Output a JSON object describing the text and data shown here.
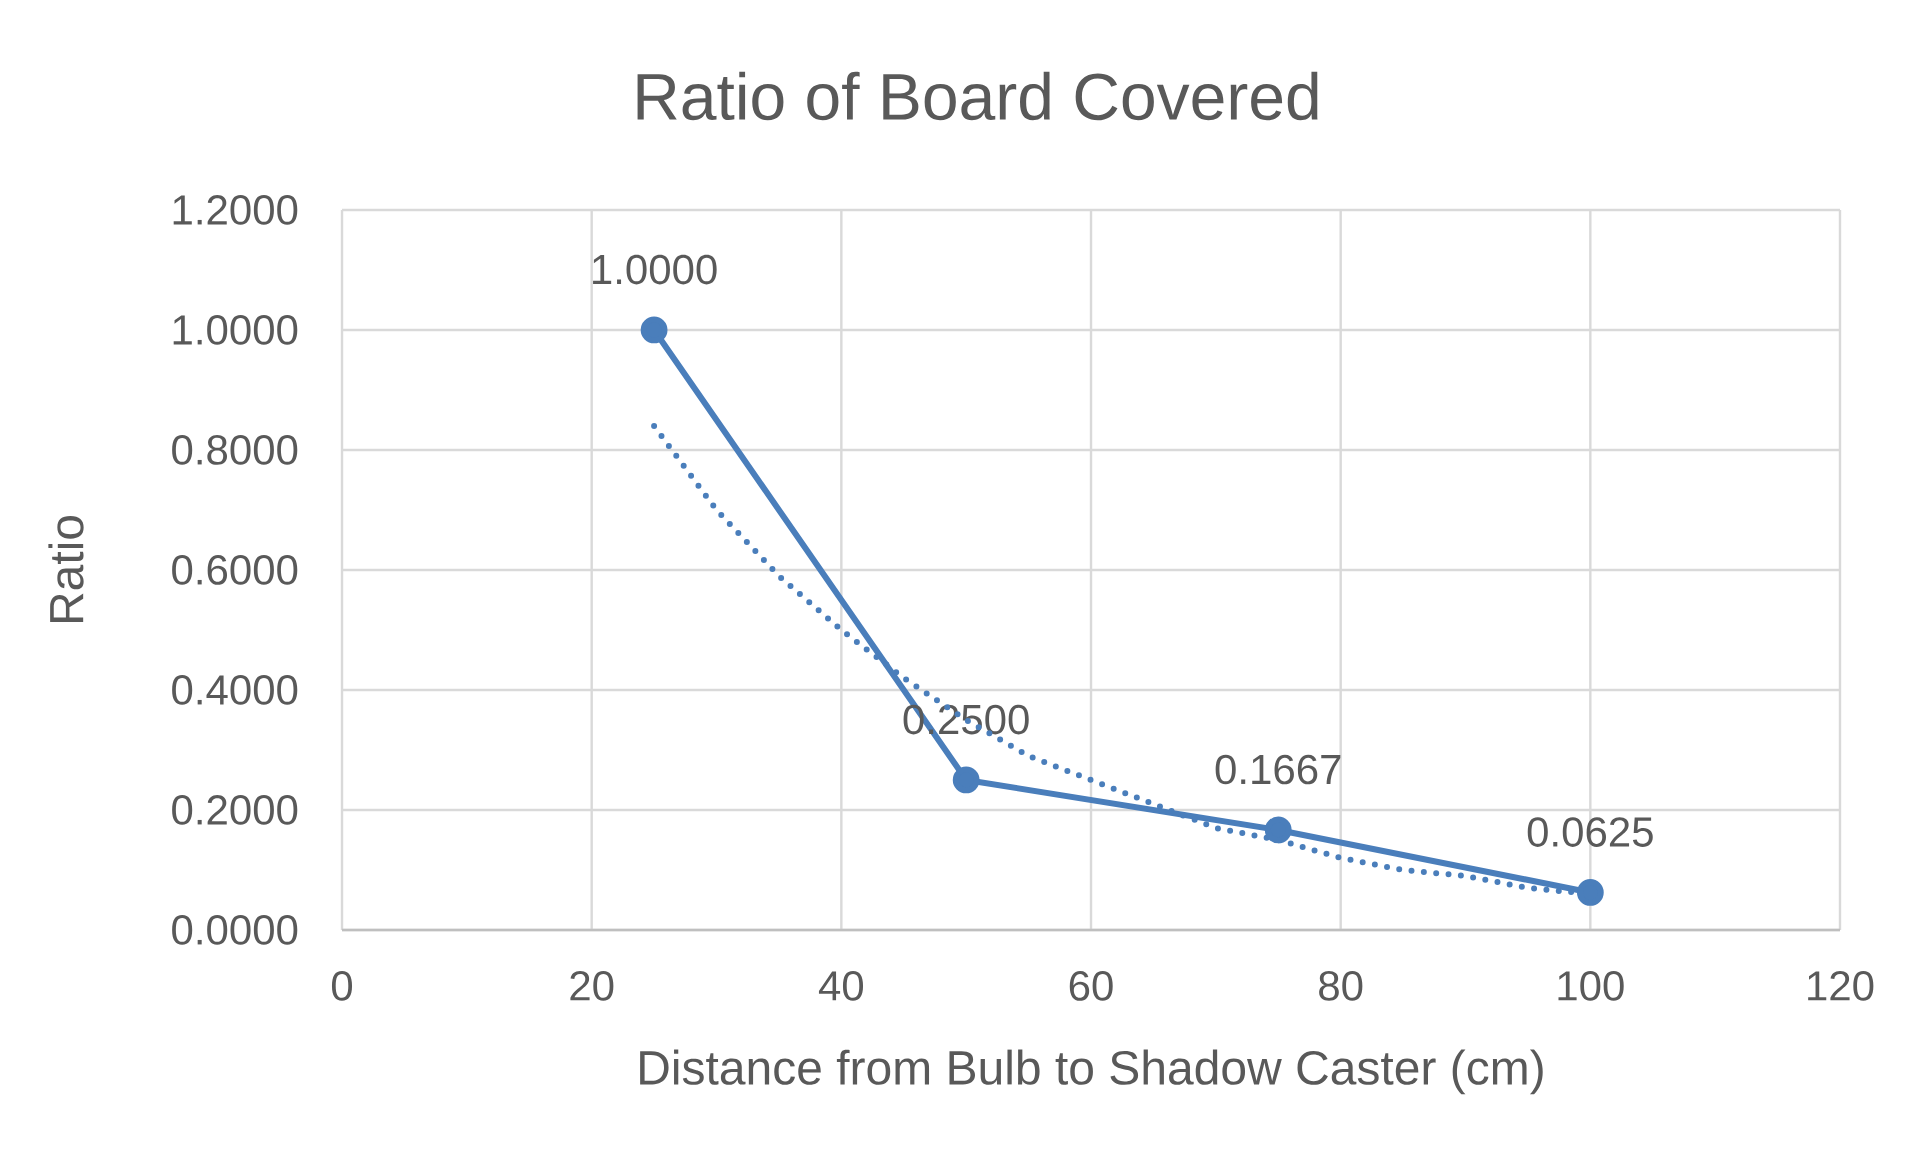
{
  "chart_data": {
    "type": "line",
    "title": "Ratio of Board Covered",
    "xlabel": "Distance from Bulb to Shadow Caster (cm)",
    "ylabel": "Ratio",
    "x": [
      25,
      50,
      75,
      100
    ],
    "xlim": [
      0,
      120
    ],
    "xticks": [
      0,
      20,
      40,
      60,
      80,
      100,
      120
    ],
    "ylim": [
      0,
      1.2
    ],
    "yticks": [
      {
        "value": 0,
        "label": "0.0000"
      },
      {
        "value": 0.2,
        "label": "0.2000"
      },
      {
        "value": 0.4,
        "label": "0.4000"
      },
      {
        "value": 0.6,
        "label": "0.6000"
      },
      {
        "value": 0.8,
        "label": "0.8000"
      },
      {
        "value": 1.0,
        "label": "1.0000"
      },
      {
        "value": 1.2,
        "label": "1.2000"
      }
    ],
    "grid": true,
    "series": [
      {
        "color": "#4a7ebb",
        "values": [
          1.0,
          0.25,
          0.1667,
          0.0625
        ],
        "value_labels": [
          "1.0000",
          "0.2500",
          "0.1667",
          "0.0625"
        ],
        "marker": "circle",
        "line_style": "solid"
      },
      {
        "color": "#4a7ebb",
        "x": [
          25,
          30,
          35,
          40,
          45,
          50,
          55,
          60,
          65,
          70,
          75,
          80,
          85,
          90,
          95,
          100
        ],
        "values": [
          0.84,
          0.7,
          0.59,
          0.5,
          0.42,
          0.35,
          0.29,
          0.25,
          0.21,
          0.17,
          0.15,
          0.12,
          0.1,
          0.09,
          0.07,
          0.06
        ],
        "marker": "none",
        "line_style": "dotted"
      }
    ]
  }
}
